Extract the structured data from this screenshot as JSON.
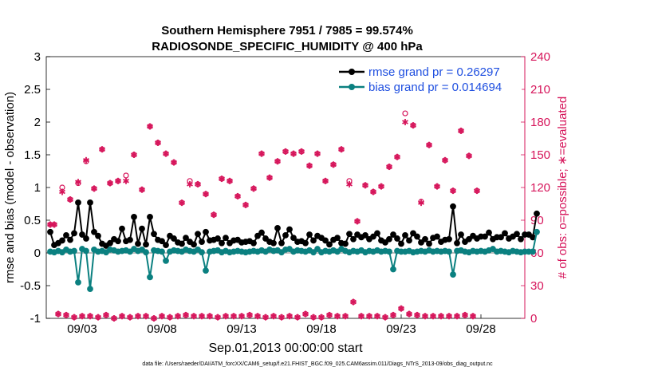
{
  "chart_data": {
    "type": "line",
    "title": "Southern Hemisphere 7951 / 7985 = 99.574%",
    "subtitle": "RADIOSONDE_SPECIFIC_HUMIDITY @ 400 hPa",
    "xlabel": "Sep.01,2013 00:00:00 start",
    "ylabel": "rmse and bias (model - observation)",
    "ylabel_right": "# of obs: o=possible; ∗=evaluated",
    "footnote": "data file: /Users/raeder/DAI/ATM_forcXX/CAM6_setup/f.e21.FHIST_BGC.f09_025.CAM6assim.011/Diags_NTrS_2013-09/obs_diag_output.nc",
    "ylim": [
      -1,
      3
    ],
    "ylim_right": [
      0,
      240
    ],
    "xlim": [
      0.75,
      30.75
    ],
    "x_ticks": [
      {
        "x": 3,
        "label": "09/03"
      },
      {
        "x": 8,
        "label": "09/08"
      },
      {
        "x": 13,
        "label": "09/13"
      },
      {
        "x": 18,
        "label": "09/18"
      },
      {
        "x": 23,
        "label": "09/23"
      },
      {
        "x": 28,
        "label": "09/28"
      }
    ],
    "y_ticks": [
      "-1",
      "-0.5",
      "0",
      "0.5",
      "1",
      "1.5",
      "2",
      "2.5",
      "3"
    ],
    "y_ticks_right": [
      "0",
      "30",
      "60",
      "90",
      "120",
      "150",
      "180",
      "210",
      "240"
    ],
    "x_start": 1,
    "x_step": 0.25,
    "series": [
      {
        "name": "rmse grand pr = 0.26297",
        "color": "#000000",
        "values": [
          0.32,
          0.12,
          0.15,
          0.19,
          0.27,
          0.2,
          0.3,
          0.77,
          0.28,
          0.22,
          0.77,
          0.32,
          0.26,
          0.14,
          0.11,
          0.15,
          0.21,
          0.18,
          0.37,
          0.18,
          0.2,
          0.55,
          0.14,
          0.37,
          0.13,
          0.55,
          0.29,
          0.2,
          0.18,
          0.12,
          0.26,
          0.22,
          0.16,
          0.14,
          0.23,
          0.17,
          0.13,
          0.29,
          0.17,
          0.32,
          0.19,
          0.2,
          0.22,
          0.15,
          0.23,
          0.15,
          0.19,
          0.2,
          0.16,
          0.17,
          0.18,
          0.15,
          0.26,
          0.31,
          0.22,
          0.17,
          0.15,
          0.38,
          0.15,
          0.27,
          0.36,
          0.23,
          0.17,
          0.18,
          0.15,
          0.28,
          0.19,
          0.26,
          0.23,
          0.19,
          0.13,
          0.2,
          0.23,
          0.15,
          0.14,
          0.29,
          0.21,
          0.28,
          0.24,
          0.27,
          0.21,
          0.25,
          0.3,
          0.19,
          0.16,
          0.21,
          0.28,
          0.22,
          0.14,
          0.27,
          0.19,
          0.3,
          0.25,
          0.16,
          0.21,
          0.14,
          0.23,
          0.25,
          0.17,
          0.2,
          0.21,
          0.71,
          0.15,
          0.28,
          0.17,
          0.21,
          0.26,
          0.22,
          0.25,
          0.25,
          0.31,
          0.21,
          0.24,
          0.24,
          0.3,
          0.22,
          0.25,
          0.29,
          0.21,
          0.28,
          0.28,
          0.24,
          0.6
        ]
      },
      {
        "name": "bias grand pr = 0.014694",
        "color": "#0b8080",
        "values": [
          0.02,
          0.01,
          0.03,
          0.01,
          0.05,
          0.02,
          0.03,
          -0.45,
          0.06,
          0.03,
          -0.55,
          0.05,
          0.02,
          0.03,
          0.01,
          0.05,
          0.04,
          0.02,
          0.03,
          0.04,
          0.02,
          0.06,
          0.03,
          0.05,
          0.01,
          -0.37,
          0.04,
          0.03,
          0.02,
          -0.12,
          0.02,
          0.04,
          0.03,
          0.02,
          0.05,
          0.03,
          0.02,
          0.05,
          0.01,
          -0.27,
          0.02,
          0.03,
          0.04,
          0.01,
          0.03,
          0.01,
          0.02,
          0.03,
          0.02,
          0.01,
          0.02,
          0.03,
          0.02,
          0.04,
          0.02,
          0.05,
          0.03,
          0.04,
          0.01,
          0.05,
          0.06,
          0.02,
          0.04,
          0.03,
          0.02,
          0.04,
          0.01,
          0.06,
          0.01,
          0.03,
          0.02,
          0.04,
          0.02,
          0.06,
          0.03,
          0.01,
          0.03,
          0.02,
          0.04,
          0.01,
          0.03,
          0.02,
          0.04,
          0.02,
          0.03,
          0.02,
          -0.25,
          0.03,
          0.02,
          0.02,
          0.03,
          0.01,
          0.02,
          0.03,
          0.02,
          0.04,
          0.02,
          0.03,
          0.02,
          0.03,
          0.02,
          -0.33,
          0.03,
          0.04,
          0.02,
          0.01,
          0.03,
          0.02,
          0.03,
          0.02,
          0.04,
          0.06,
          0.02,
          0.03,
          0.02,
          0.01,
          0.03,
          0.02,
          0.01,
          0.02,
          0.02,
          0.02,
          0.32
        ]
      }
    ],
    "obs_possible": {
      "name": "o=possible",
      "color": "#d6145a",
      "values": [
        86,
        86,
        4,
        120,
        3,
        109,
        1,
        124,
        2,
        144,
        2,
        119,
        1,
        155,
        3,
        124,
        0,
        126,
        2,
        131,
        1,
        150,
        2,
        118,
        2,
        176,
        0,
        161,
        2,
        151,
        1,
        143,
        2,
        106,
        3,
        126,
        2,
        123,
        2,
        114,
        2,
        95,
        1,
        128,
        2,
        126,
        2,
        112,
        2,
        104,
        3,
        119,
        2,
        151,
        1,
        129,
        2,
        144,
        1,
        153,
        2,
        151,
        1,
        153,
        4,
        140,
        1,
        151,
        1,
        126,
        3,
        141,
        2,
        155,
        2,
        126,
        15,
        89,
        2,
        122,
        2,
        116,
        2,
        121,
        1,
        139,
        3,
        148,
        9,
        188,
        4,
        177,
        3,
        107,
        2,
        159,
        2,
        121,
        2,
        145,
        2,
        117,
        2,
        172,
        3,
        149,
        2,
        117
      ]
    },
    "obs_evaluated": {
      "name": "∗=evaluated",
      "color": "#d6145a",
      "values": [
        86,
        86,
        4,
        116,
        3,
        109,
        1,
        125,
        2,
        145,
        2,
        119,
        1,
        155,
        3,
        124,
        0,
        126,
        2,
        126,
        1,
        150,
        2,
        118,
        2,
        176,
        0,
        161,
        2,
        151,
        1,
        143,
        2,
        106,
        3,
        123,
        2,
        123,
        2,
        114,
        2,
        95,
        1,
        128,
        2,
        126,
        2,
        112,
        2,
        104,
        3,
        119,
        2,
        151,
        1,
        129,
        2,
        144,
        1,
        153,
        2,
        151,
        1,
        153,
        4,
        140,
        1,
        151,
        1,
        126,
        3,
        141,
        2,
        155,
        2,
        123,
        15,
        89,
        2,
        122,
        2,
        116,
        2,
        121,
        1,
        139,
        3,
        148,
        9,
        180,
        4,
        177,
        3,
        106,
        2,
        159,
        2,
        121,
        2,
        145,
        2,
        117,
        2,
        172,
        3,
        149,
        2,
        117
      ]
    }
  }
}
